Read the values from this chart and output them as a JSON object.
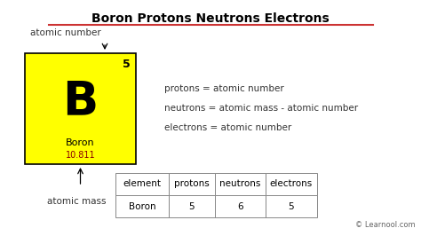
{
  "title": "Boron Protons Neutrons Electrons",
  "title_underline_color": "#cc3333",
  "bg_color": "#ffffff",
  "element_symbol": "B",
  "element_name": "Boron",
  "atomic_number": "5",
  "atomic_mass": "10.811",
  "element_box_color": "#ffff00",
  "element_box_edge_color": "#000000",
  "annotation_atomic_number": "atomic number",
  "annotation_atomic_mass": "atomic mass",
  "formula_line1": "protons = atomic number",
  "formula_line2": "neutrons = atomic mass - atomic number",
  "formula_line3": "electrons = atomic number",
  "table_headers": [
    "element",
    "protons",
    "neutrons",
    "electrons"
  ],
  "table_row": [
    "Boron",
    "5",
    "6",
    "5"
  ],
  "watermark": "© Learnool.com",
  "atomic_mass_color": "#8B0000",
  "text_color": "#333333"
}
